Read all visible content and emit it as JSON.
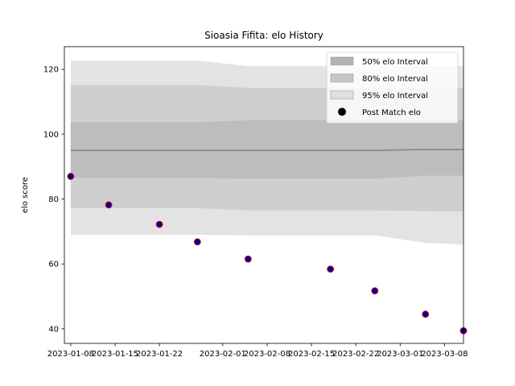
{
  "chart_data": {
    "type": "line",
    "title": "Sioasia Fifita: elo History",
    "xlabel": "",
    "ylabel": "elo score",
    "x_ticks": [
      "2023-01-08",
      "2023-01-15",
      "2023-01-22",
      "2023-02-01",
      "2023-02-08",
      "2023-02-15",
      "2023-02-22",
      "2023-03-01",
      "2023-03-08"
    ],
    "y_ticks": [
      40,
      60,
      80,
      100,
      120
    ],
    "xlim": [
      "2023-01-07",
      "2023-03-11"
    ],
    "ylim": [
      35.5,
      127
    ],
    "grid": false,
    "legend_position": "top-right",
    "x": [
      "2023-01-08",
      "2023-01-14",
      "2023-01-22",
      "2023-01-28",
      "2023-02-05",
      "2023-02-18",
      "2023-02-25",
      "2023-03-05",
      "2023-03-11"
    ],
    "series": [
      {
        "name": "Post Match elo",
        "marker": "circle",
        "color": "#00008b",
        "edgecolor": "#ff0000",
        "values": [
          87,
          78.2,
          72.2,
          66.8,
          61.5,
          58.4,
          51.7,
          44.5,
          39.4
        ]
      },
      {
        "values": [
          95,
          95,
          95,
          95,
          95,
          95,
          95,
          95.3,
          95.3
        ],
        "color": "#808080"
      }
    ],
    "intervals": [
      {
        "name": "95% elo Interval",
        "color": "#e3e3e3",
        "upper": [
          122.7,
          122.7,
          122.7,
          122.7,
          121.0,
          121.0,
          121.0,
          121.0,
          121.0
        ],
        "lower": [
          69.0,
          69.0,
          69.0,
          69.0,
          68.8,
          68.8,
          68.8,
          66.5,
          66.0
        ]
      },
      {
        "name": "80% elo Interval",
        "color": "#cfcfcf",
        "upper": [
          115.2,
          115.2,
          115.2,
          115.2,
          114.3,
          114.3,
          114.3,
          114.3,
          114.3
        ],
        "lower": [
          77.2,
          77.2,
          77.2,
          77.2,
          76.5,
          76.5,
          76.5,
          76.3,
          76.2
        ]
      },
      {
        "name": "50% elo Interval",
        "color": "#bdbdbd",
        "upper": [
          103.7,
          103.7,
          103.7,
          103.7,
          104.3,
          104.3,
          104.3,
          104.3,
          104.3
        ],
        "lower": [
          86.5,
          86.5,
          86.5,
          86.5,
          86.3,
          86.3,
          86.3,
          87.2,
          87.2
        ]
      }
    ],
    "legend": [
      {
        "label": "50% elo Interval",
        "kind": "patch",
        "color": "#b3b3b3"
      },
      {
        "label": "80% elo Interval",
        "kind": "patch",
        "color": "#c7c7c7"
      },
      {
        "label": "95% elo Interval",
        "kind": "patch",
        "color": "#e0e0e0"
      },
      {
        "label": "Post Match elo",
        "kind": "marker",
        "color": "#000000"
      }
    ]
  }
}
